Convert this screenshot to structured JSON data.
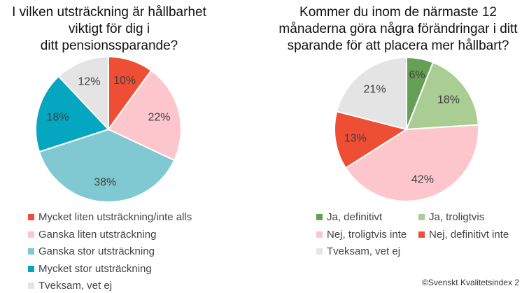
{
  "chart_data": [
    {
      "type": "pie",
      "title": "I vilken utsträckning är hållbarhet\nviktigt för dig i\nditt pensionssparande?",
      "categories": [
        "Mycket liten utsträckning/inte alls",
        "Ganska liten utsträckning",
        "Ganska stor utsträckning",
        "Mycket stor utsträckning",
        "Tveksam, vet ej"
      ],
      "values": [
        10,
        22,
        38,
        18,
        12
      ],
      "labels": [
        "10%",
        "22%",
        "38%",
        "18%",
        "12%"
      ],
      "colors": [
        "#ee4e34",
        "#fcc6cc",
        "#80c9d3",
        "#05a6bf",
        "#e4e4e4"
      ],
      "legend_position": "bottom"
    },
    {
      "type": "pie",
      "title": "Kommer du inom de närmaste 12\nmånaderna göra några förändringar i ditt\nsparande för att placera mer hållbart?",
      "categories": [
        "Ja, definitivt",
        "Ja, troligtvis",
        "Nej, troligtvis inte",
        "Nej, definitivt inte",
        "Tveksam, vet ej"
      ],
      "values": [
        6,
        18,
        42,
        13,
        21
      ],
      "labels": [
        "6%",
        "18%",
        "42%",
        "13%",
        "21%"
      ],
      "colors": [
        "#65a054",
        "#a9cd92",
        "#fcc6cc",
        "#ee4e34",
        "#e4e4e4"
      ],
      "legend_position": "bottom"
    }
  ],
  "copyright": "©Svenskt Kvalitetsindex 2"
}
